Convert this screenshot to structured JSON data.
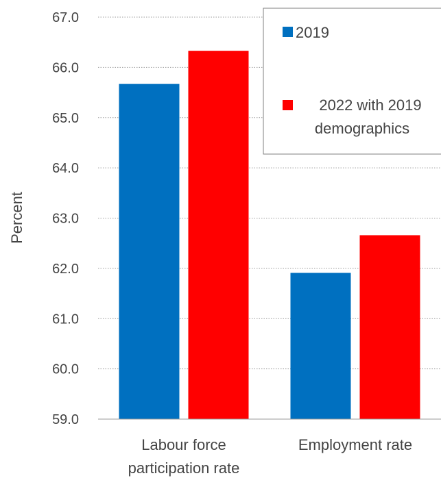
{
  "chart_data": {
    "type": "bar",
    "categories": [
      [
        "Labour force",
        "participation rate"
      ],
      [
        "Employment rate"
      ]
    ],
    "series": [
      {
        "name": "2019",
        "color": "#0070C0",
        "values": [
          65.67,
          61.91
        ]
      },
      {
        "name": [
          "2022 with 2019",
          "demographics"
        ],
        "color": "#FF0000",
        "values": [
          66.33,
          62.66
        ]
      }
    ],
    "ylabel": "Percent",
    "ylim": [
      59.0,
      67.0
    ],
    "yticks": [
      "59.0",
      "60.0",
      "61.0",
      "62.0",
      "63.0",
      "64.0",
      "65.0",
      "66.0",
      "67.0"
    ],
    "grid": true,
    "legend_position": "top-right"
  }
}
